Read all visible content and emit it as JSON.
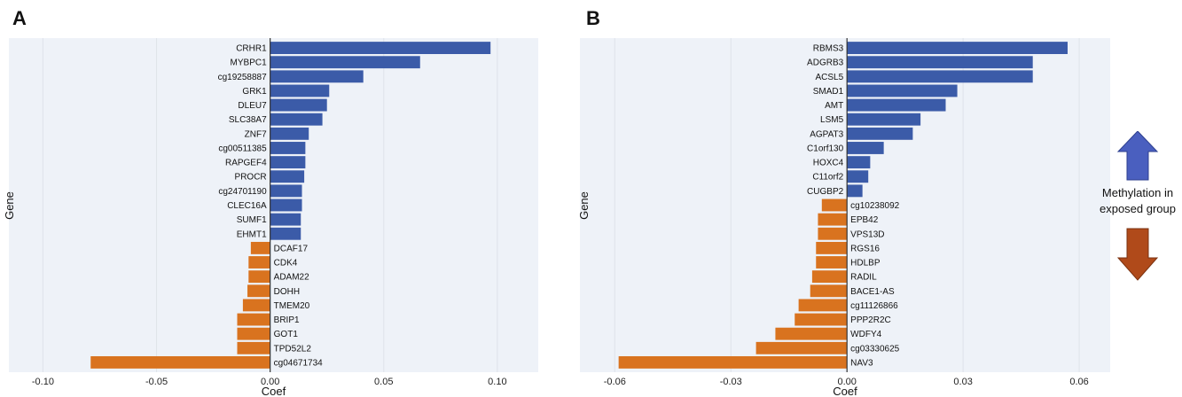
{
  "panels": [
    {
      "letter": "A"
    },
    {
      "letter": "B"
    }
  ],
  "legend": {
    "up_color": "#4a5fbf",
    "down_color": "#b04a1a",
    "line1": "Methylation in",
    "line2": "exposed group",
    "up_icon": "up-arrow-icon",
    "down_icon": "down-arrow-icon"
  },
  "colors": {
    "positive": "#3b5ba8",
    "negative": "#d9731f",
    "plot_bg": "#eef2f8",
    "grid": "#dfe3ea",
    "zero_line": "#333333"
  },
  "chart_data": [
    {
      "type": "bar",
      "orientation": "horizontal",
      "xlabel": "Coef",
      "ylabel": "Gene",
      "xlim": [
        -0.115,
        0.118
      ],
      "xticks": [
        -0.1,
        -0.05,
        0.0,
        0.05,
        0.1
      ],
      "xtick_labels": [
        "-0.10",
        "-0.05",
        "0.00",
        "0.05",
        "0.10"
      ],
      "grid": true,
      "categories": [
        "CRHR1",
        "MYBPC1",
        "cg19258887",
        "GRK1",
        "DLEU7",
        "SLC38A7",
        "ZNF7",
        "cg00511385",
        "RAPGEF4",
        "PROCR",
        "cg24701190",
        "CLEC16A",
        "SUMF1",
        "EHMT1",
        "DCAF17",
        "CDK4",
        "ADAM22",
        "DOHH",
        "TMEM20",
        "BRIP1",
        "GOT1",
        "TPD52L2",
        "cg04671734"
      ],
      "values": [
        0.097,
        0.066,
        0.041,
        0.026,
        0.025,
        0.023,
        0.017,
        0.0155,
        0.0155,
        0.015,
        0.014,
        0.014,
        0.0135,
        0.0135,
        -0.0085,
        -0.0095,
        -0.0095,
        -0.01,
        -0.012,
        -0.0145,
        -0.0145,
        -0.0145,
        -0.079
      ]
    },
    {
      "type": "bar",
      "orientation": "horizontal",
      "xlabel": "Coef",
      "ylabel": "Gene",
      "xlim": [
        -0.069,
        0.068
      ],
      "xticks": [
        -0.06,
        -0.03,
        0.0,
        0.03,
        0.06
      ],
      "xtick_labels": [
        "-0.06",
        "-0.03",
        "0.00",
        "0.03",
        "0.06"
      ],
      "grid": true,
      "categories": [
        "RBMS3",
        "ADGRB3",
        "ACSL5",
        "SMAD1",
        "AMT",
        "LSM5",
        "AGPAT3",
        "C1orf130",
        "HOXC4",
        "C11orf2",
        "CUGBP2",
        "cg10238092",
        "EPB42",
        "VPS13D",
        "RGS16",
        "HDLBP",
        "RADIL",
        "BACE1-AS",
        "cg11126866",
        "PPP2R2C",
        "WDFY4",
        "cg03330625",
        "NAV3"
      ],
      "values": [
        0.057,
        0.048,
        0.048,
        0.0285,
        0.0255,
        0.019,
        0.017,
        0.0095,
        0.006,
        0.0055,
        0.004,
        -0.0065,
        -0.0075,
        -0.0075,
        -0.008,
        -0.008,
        -0.009,
        -0.0095,
        -0.0125,
        -0.0135,
        -0.0185,
        -0.0235,
        -0.059
      ]
    }
  ]
}
